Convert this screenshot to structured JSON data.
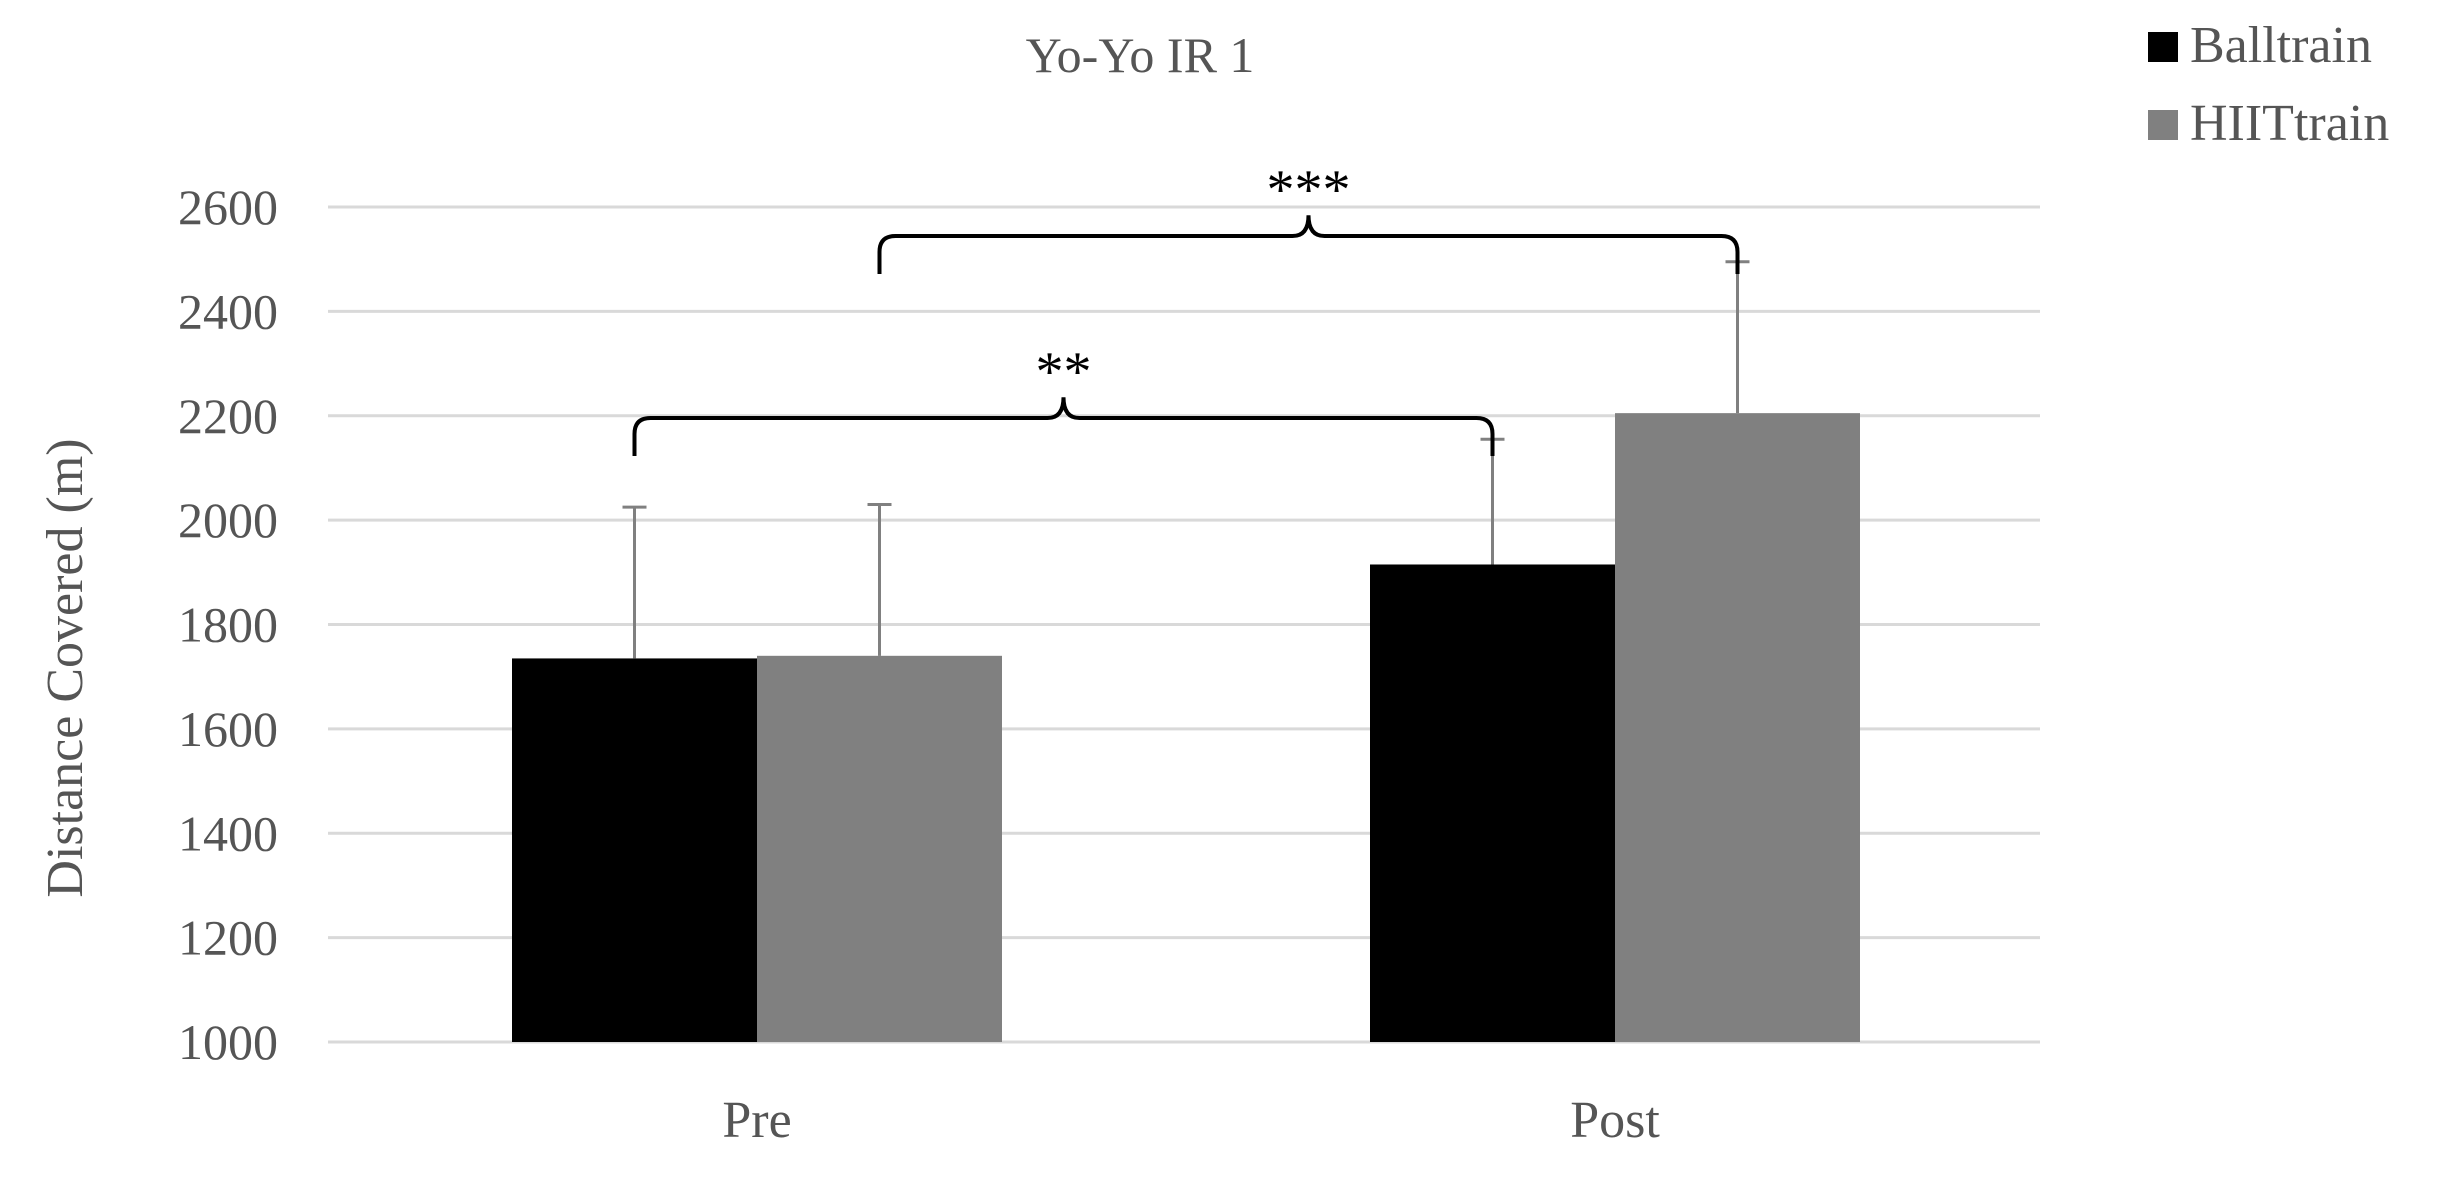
{
  "chart_data": {
    "type": "bar",
    "title": "Yo-Yo IR 1",
    "xlabel": "",
    "ylabel": "Distance Covered (m)",
    "ylim": [
      1000,
      2600
    ],
    "yticks": [
      1000,
      1200,
      1400,
      1600,
      1800,
      2000,
      2200,
      2400,
      2600
    ],
    "grid": true,
    "legend": "top-right",
    "categories": [
      "Pre",
      "Post"
    ],
    "series": [
      {
        "name": "Balltrain",
        "values": [
          1735,
          1915
        ],
        "error": [
          290,
          240
        ],
        "color": "#000000"
      },
      {
        "name": "HIITtrain",
        "values": [
          1740,
          2205
        ],
        "error": [
          290,
          290
        ],
        "color": "#808080"
      }
    ],
    "annotations": [
      {
        "label": "**",
        "from": "Pre Balltrain",
        "to": "Post Balltrain"
      },
      {
        "label": "***",
        "from": "Pre HIITtrain",
        "to": "Post HIITtrain"
      }
    ]
  }
}
